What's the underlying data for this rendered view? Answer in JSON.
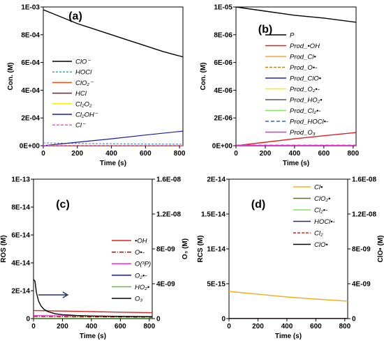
{
  "chart_data": [
    {
      "panel": "(a)",
      "type": "line",
      "ylabel": "Con. (M)",
      "xlabel": "Time (s)",
      "xlim": [
        0,
        820
      ],
      "ylim": [
        0,
        0.001
      ],
      "xticks": [
        "0",
        "200",
        "400",
        "600",
        "800"
      ],
      "yticks": [
        "0E+00",
        "2E-04",
        "4E-04",
        "6E-04",
        "8E-04",
        "1E-03"
      ],
      "ytick_values": [
        0,
        0.0002,
        0.0004,
        0.0006,
        0.0008,
        0.001
      ],
      "legend": "left",
      "series": [
        {
          "name": "ClO⁻",
          "color": "#000000",
          "dash": "",
          "width": 1.4,
          "x": [
            0,
            100,
            200,
            300,
            400,
            500,
            600,
            700,
            820
          ],
          "y": [
            0.00098,
            0.00093,
            0.00088,
            0.00084,
            0.0008,
            0.00076,
            0.00072,
            0.00068,
            0.00064
          ]
        },
        {
          "name": "HOCl",
          "color": "#2aa7e0",
          "dash": "3,2",
          "width": 1.2,
          "x": [
            0,
            200,
            400,
            600,
            820
          ],
          "y": [
            2e-05,
            1.6e-05,
            1.4e-05,
            1.2e-05,
            1.1e-05
          ]
        },
        {
          "name": "ClO₂⁻",
          "color": "#e8501c",
          "dash": "",
          "width": 1.2,
          "x": [
            0,
            820
          ],
          "y": [
            1e-06,
            1e-06
          ]
        },
        {
          "name": "HCl",
          "color": "#8b1a1a",
          "dash": "",
          "width": 1.2,
          "x": [
            0,
            820
          ],
          "y": [
            5e-07,
            5e-07
          ]
        },
        {
          "name": "Cl₂O₂",
          "color": "#f2f200",
          "dash": "",
          "width": 1.2,
          "x": [
            0,
            820
          ],
          "y": [
            3e-07,
            3e-07
          ]
        },
        {
          "name": "Cl₂OH⁻",
          "color": "#1a1aa0",
          "dash": "",
          "width": 1.2,
          "x": [
            0,
            200,
            400,
            600,
            820
          ],
          "y": [
            0,
            2.5e-05,
            5e-05,
            7.7e-05,
            0.000105
          ]
        },
        {
          "name": "Cl⁻",
          "color": "#ee55ee",
          "dash": "4,2",
          "width": 1.2,
          "x": [
            0,
            820
          ],
          "y": [
            2e-06,
            2e-06
          ]
        }
      ]
    },
    {
      "panel": "(b)",
      "type": "line",
      "ylabel": "Con. (M)",
      "xlabel": "Time (s)",
      "xlim": [
        0,
        820
      ],
      "ylim": [
        0,
        1e-05
      ],
      "xticks": [
        "0",
        "200",
        "400",
        "600",
        "800"
      ],
      "yticks": [
        "0E+00",
        "2E-06",
        "4E-06",
        "6E-06",
        "8E-06",
        "1E-05"
      ],
      "ytick_values": [
        0,
        2e-06,
        4e-06,
        6e-06,
        8e-06,
        1e-05
      ],
      "legend": "right",
      "series": [
        {
          "name": "P",
          "color": "#000000",
          "dash": "",
          "width": 1.4,
          "x": [
            0,
            200,
            400,
            600,
            820
          ],
          "y": [
            1e-05,
            9.7e-06,
            9.4e-06,
            9.2e-06,
            8.9e-06
          ]
        },
        {
          "name": "Prod_•OH",
          "color": "#e02020",
          "dash": "",
          "width": 1.4,
          "x": [
            0,
            200,
            400,
            600,
            820
          ],
          "y": [
            0,
            2.5e-07,
            5e-07,
            7.2e-07,
            9.5e-07
          ]
        },
        {
          "name": "Prod_Cl•",
          "color": "#f0a830",
          "dash": "",
          "width": 1.2,
          "x": [
            0,
            820
          ],
          "y": [
            3e-08,
            3e-08
          ]
        },
        {
          "name": "Prod_O•-",
          "color": "#b8860b",
          "dash": "4,2",
          "width": 1.2,
          "x": [
            0,
            820
          ],
          "y": [
            2e-08,
            2e-08
          ]
        },
        {
          "name": "Prod_ClO•",
          "color": "#2020d0",
          "dash": "",
          "width": 1.2,
          "x": [
            0,
            820
          ],
          "y": [
            1e-08,
            1e-08
          ]
        },
        {
          "name": "Prod_O₂•-",
          "color": "#f2f200",
          "dash": "",
          "width": 1.2,
          "x": [
            0,
            820
          ],
          "y": [
            1e-08,
            1e-08
          ]
        },
        {
          "name": "Prod_HO₂•",
          "color": "#555555",
          "dash": "",
          "width": 1.2,
          "x": [
            0,
            820
          ],
          "y": [
            5e-09,
            5e-09
          ]
        },
        {
          "name": "Prod_Cl₂•-",
          "color": "#88dd66",
          "dash": "",
          "width": 1.2,
          "x": [
            0,
            820
          ],
          "y": [
            5e-09,
            5e-09
          ]
        },
        {
          "name": "Prod_HOCl•-",
          "color": "#3060d0",
          "dash": "5,3",
          "width": 1.2,
          "x": [
            0,
            820
          ],
          "y": [
            4e-08,
            4e-08
          ]
        },
        {
          "name": "Prod_O₃",
          "color": "#dd33cc",
          "dash": "",
          "width": 1.2,
          "x": [
            0,
            820
          ],
          "y": [
            2e-08,
            2e-08
          ]
        }
      ]
    },
    {
      "panel": "(c)",
      "type": "line",
      "ylabel": "ROS (M)",
      "ylabel_right": "O₃ (M)",
      "xlabel": "Time (s)",
      "xlim": [
        0,
        820
      ],
      "ylim": [
        0,
        1e-13
      ],
      "ylim_right": [
        0,
        1.6e-08
      ],
      "xticks": [
        "0",
        "200",
        "400",
        "600",
        "800"
      ],
      "yticks": [
        "0",
        "2E-14",
        "4E-14",
        "6E-14",
        "8E-14",
        "1E-13"
      ],
      "ytick_values": [
        0,
        2e-14,
        4e-14,
        6e-14,
        8e-14,
        1e-13
      ],
      "yticks_right": [
        "0",
        "4E-09",
        "8E-09",
        "1.2E-08",
        "1.6E-08"
      ],
      "ytick_values_right": [
        0,
        4e-09,
        8e-09,
        1.2e-08,
        1.6e-08
      ],
      "legend": "right",
      "annotation": "arrow pointing to right axis",
      "series": [
        {
          "name": "•OH",
          "color": "#e02020",
          "dash": "",
          "width": 1.4,
          "axis": "left",
          "x": [
            0,
            200,
            400,
            600,
            820
          ],
          "y": [
            5.8e-15,
            5.4e-15,
            5e-15,
            4.6e-15,
            4.2e-15
          ]
        },
        {
          "name": "O•-",
          "color": "#c00000",
          "dash": "6,2,1,2",
          "width": 1.2,
          "axis": "left",
          "x": [
            0,
            820
          ],
          "y": [
            1.5e-15,
            1e-15
          ]
        },
        {
          "name": "O(³P)",
          "color": "#ee33cc",
          "dash": "",
          "width": 1.2,
          "axis": "left",
          "x": [
            0,
            820
          ],
          "y": [
            2.2e-15,
            1.5e-15
          ]
        },
        {
          "name": "O₂•-",
          "color": "#1a1a80",
          "dash": "",
          "width": 1.2,
          "axis": "left",
          "x": [
            0,
            820
          ],
          "y": [
            2e-16,
            2e-16
          ]
        },
        {
          "name": "HO₂•",
          "color": "#66bb33",
          "dash": "",
          "width": 1.2,
          "axis": "left",
          "x": [
            0,
            820
          ],
          "y": [
            1e-16,
            1e-16
          ]
        },
        {
          "name": "O₃",
          "color": "#000000",
          "dash": "",
          "width": 1.4,
          "axis": "right",
          "x": [
            0,
            10,
            20,
            35,
            50,
            70,
            100,
            150,
            200,
            300,
            400,
            500,
            600,
            700,
            820
          ],
          "y": [
            4.5e-09,
            4.3e-09,
            3e-09,
            2e-09,
            1.5e-09,
            1.1e-09,
            8e-10,
            5.5e-10,
            4.5e-10,
            3.5e-10,
            3e-10,
            2.7e-10,
            2.5e-10,
            2.3e-10,
            2.2e-10
          ]
        }
      ]
    },
    {
      "panel": "(d)",
      "type": "line",
      "ylabel": "RCS (M)",
      "ylabel_right": "ClO• (M)",
      "xlabel": "Time (s)",
      "xlim": [
        0,
        820
      ],
      "ylim": [
        0,
        2e-14
      ],
      "ylim_right": [
        0,
        1.6e-08
      ],
      "xticks": [
        "0",
        "200",
        "400",
        "600",
        "800"
      ],
      "yticks": [
        "0",
        "5E-15",
        "1E-14",
        "1.5E-14",
        "2E-14"
      ],
      "ytick_values": [
        0,
        5e-15,
        1e-14,
        1.5e-14,
        2e-14
      ],
      "yticks_right": [
        "0",
        "4E-09",
        "8E-09",
        "1.2E-08",
        "1.6E-08"
      ],
      "ytick_values_right": [
        0,
        4e-09,
        8e-09,
        1.2e-08,
        1.6e-08
      ],
      "legend": "top-right",
      "series": [
        {
          "name": "Cl•",
          "color": "#f0b020",
          "dash": "",
          "width": 1.4,
          "axis": "left",
          "x": [
            0,
            200,
            400,
            600,
            820
          ],
          "y": [
            3.9e-15,
            3.5e-15,
            3.1e-15,
            2.8e-15,
            2.5e-15
          ]
        },
        {
          "name": "ClO₂•",
          "color": "#666633",
          "dash": "",
          "width": 1.2,
          "axis": "left",
          "x": [
            0,
            820
          ],
          "y": [
            2e-17,
            2e-17
          ]
        },
        {
          "name": "Cl₂•-",
          "color": "#88dd66",
          "dash": "",
          "width": 1.2,
          "axis": "left",
          "x": [
            0,
            820
          ],
          "y": [
            2e-17,
            2e-17
          ]
        },
        {
          "name": "HOCl•-",
          "color": "#2020a0",
          "dash": "",
          "width": 1.2,
          "axis": "left",
          "x": [
            0,
            820
          ],
          "y": [
            1e-17,
            1e-17
          ]
        },
        {
          "name": "Cl₂",
          "color": "#e02020",
          "dash": "4,2",
          "width": 1.4,
          "axis": "left",
          "x": [
            0,
            820
          ],
          "y": [
            1e-17,
            1e-17
          ]
        },
        {
          "name": "ClO•",
          "color": "#000000",
          "dash": "",
          "width": 1.4,
          "axis": "right",
          "x": [
            0,
            820
          ],
          "y": [
            1e-11,
            1e-11
          ]
        }
      ]
    }
  ]
}
